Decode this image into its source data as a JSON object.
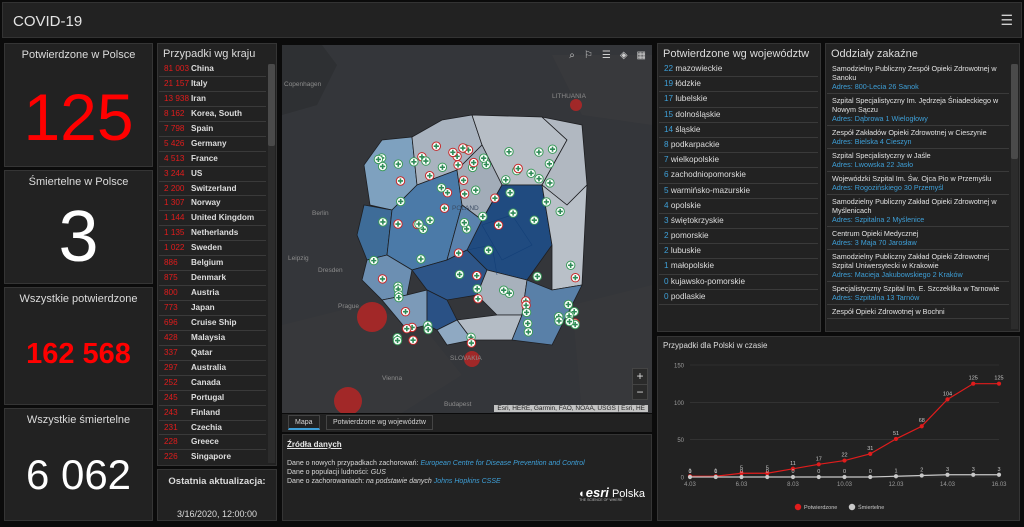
{
  "header": {
    "title": "COVID-19",
    "menu_icon": "hamburger-menu-icon"
  },
  "stats": {
    "confirmed_pl": {
      "label": "Potwierdzone w Polsce",
      "value": "125"
    },
    "deaths_pl": {
      "label": "Śmiertelne w Polsce",
      "value": "3"
    },
    "confirmed_all": {
      "label": "Wszystkie potwierdzone",
      "value": "162 568"
    },
    "deaths_all": {
      "label": "Wszystkie śmiertelne",
      "value": "6 062"
    }
  },
  "colors": {
    "red": "#ff0000",
    "blue": "#3e9fd7",
    "panel": "#222222",
    "chart_red": "#e01c1c",
    "chart_gray": "#c8c8c8"
  },
  "countries": {
    "title": "Przypadki wg kraju",
    "items": [
      {
        "num": "81 003",
        "name": "China"
      },
      {
        "num": "21 157",
        "name": "Italy"
      },
      {
        "num": "13 938",
        "name": "Iran"
      },
      {
        "num": "8 162",
        "name": "Korea, South"
      },
      {
        "num": "7 798",
        "name": "Spain"
      },
      {
        "num": "5 426",
        "name": "Germany"
      },
      {
        "num": "4 513",
        "name": "France"
      },
      {
        "num": "3 244",
        "name": "US"
      },
      {
        "num": "2 200",
        "name": "Switzerland"
      },
      {
        "num": "1 307",
        "name": "Norway"
      },
      {
        "num": "1 144",
        "name": "United Kingdom"
      },
      {
        "num": "1 135",
        "name": "Netherlands"
      },
      {
        "num": "1 022",
        "name": "Sweden"
      },
      {
        "num": "886",
        "name": "Belgium"
      },
      {
        "num": "875",
        "name": "Denmark"
      },
      {
        "num": "800",
        "name": "Austria"
      },
      {
        "num": "773",
        "name": "Japan"
      },
      {
        "num": "696",
        "name": "Cruise Ship"
      },
      {
        "num": "428",
        "name": "Malaysia"
      },
      {
        "num": "337",
        "name": "Qatar"
      },
      {
        "num": "297",
        "name": "Australia"
      },
      {
        "num": "252",
        "name": "Canada"
      },
      {
        "num": "245",
        "name": "Portugal"
      },
      {
        "num": "243",
        "name": "Finland"
      },
      {
        "num": "231",
        "name": "Czechia"
      },
      {
        "num": "228",
        "name": "Greece"
      },
      {
        "num": "226",
        "name": "Singapore"
      }
    ]
  },
  "last_update": {
    "label": "Ostatnia aktualizacja:",
    "value": "3/16/2020, 12:00:00"
  },
  "map": {
    "labels": {
      "copenhagen": "Copenhagen",
      "lithuania": "LITHUANIA",
      "berlin": "Berlin",
      "leipzig": "Leipzig",
      "dresden": "Dresden",
      "prague": "Prague",
      "slovakia": "SLOVAKIA",
      "vienna": "Vienna",
      "budapest": "Budapest",
      "poland": "POLAND"
    },
    "attribution": "Esri, HERE, Garmin, FAO, NOAA, USGS | Esri, HE",
    "zoom_in": "+",
    "zoom_out": "−"
  },
  "map_tabs": {
    "map": "Mapa",
    "voivodeship": "Potwierdzone wg województw"
  },
  "sources": {
    "heading": "Źródła danych",
    "line1_prefix": "Dane o nowych przypadkach zachorowań:",
    "line1_link": "European Centre for Disease Prevention and Control",
    "line2_prefix": "Dane o populacji ludności:",
    "line2_value": "GUS",
    "line3_prefix": "Dane o zachorowaniach:",
    "line3_mid": "na podstawie danych",
    "line3_link": "Johns Hopkins CSSE",
    "logo": "esri",
    "logo_suffix": "Polska",
    "logo_tagline": "THE SCIENCE OF WHERE"
  },
  "voivodeships": {
    "title": "Potwierdzone wg województw",
    "items": [
      {
        "num": "22",
        "name": "mazowieckie"
      },
      {
        "num": "19",
        "name": "łódzkie"
      },
      {
        "num": "17",
        "name": "lubelskie"
      },
      {
        "num": "15",
        "name": "dolnośląskie"
      },
      {
        "num": "14",
        "name": "śląskie"
      },
      {
        "num": "8",
        "name": "podkarpackie"
      },
      {
        "num": "7",
        "name": "wielkopolskie"
      },
      {
        "num": "6",
        "name": "zachodniopomorskie"
      },
      {
        "num": "5",
        "name": "warmińsko-mazurskie"
      },
      {
        "num": "4",
        "name": "opolskie"
      },
      {
        "num": "3",
        "name": "świętokrzyskie"
      },
      {
        "num": "2",
        "name": "pomorskie"
      },
      {
        "num": "2",
        "name": "lubuskie"
      },
      {
        "num": "1",
        "name": "małopolskie"
      },
      {
        "num": "0",
        "name": "kujawsko-pomorskie"
      },
      {
        "num": "0",
        "name": "podlaskie"
      }
    ]
  },
  "hospitals": {
    "title": "Oddziały zakaźne",
    "items": [
      {
        "name": "Samodzielny Publiczny Zespół Opieki Zdrowotnej w Sanoku",
        "addr": "Adres: 800-Lecia 26 Sanok"
      },
      {
        "name": "Szpital Specjalistyczny Im. Jędrzeja Śniadeckiego w Nowym Sączu",
        "addr": "Adres: Dąbrowa 1 Wielogłowy"
      },
      {
        "name": "Zespół Zakładów Opieki Zdrowotnej w Cieszynie",
        "addr": "Adres: Bielska 4 Cieszyn"
      },
      {
        "name": "Szpital Specjalistyczny w Jaśle",
        "addr": "Adres: Lwowska 22 Jasło"
      },
      {
        "name": "Wojewódzki Szpital Im. Św. Ojca Pio w Przemyślu",
        "addr": "Adres: Rogozińskiego 30 Przemyśl"
      },
      {
        "name": "Samodzielny Publiczny Zakład Opieki Zdrowotnej w Myślenicach",
        "addr": "Adres: Szpitalna 2 Myślenice"
      },
      {
        "name": "Centrum Opieki Medycznej",
        "addr": "Adres: 3 Maja 70 Jarosław"
      },
      {
        "name": "Samodzielny Publiczny Zakład Opieki Zdrowotnej Szpital Uniwersytecki w Krakowie",
        "addr": "Adres: Macieja Jakubowskiego 2 Kraków"
      },
      {
        "name": "Specjalistyczny Szpital Im. E. Szczeklika w Tarnowie",
        "addr": "Adres: Szpitalna 13 Tarnów"
      },
      {
        "name": "Zespół Opieki Zdrowotnej w Bochni",
        "addr": ""
      }
    ]
  },
  "chart_title": "Przypadki dla Polski w czasie",
  "chart_data": {
    "type": "line",
    "title": "Przypadki dla Polski w czasie",
    "x": [
      "4.03",
      "5.03",
      "6.03",
      "7.03",
      "8.03",
      "9.03",
      "10.03",
      "11.03",
      "12.03",
      "13.03",
      "14.03",
      "15.03",
      "16.03"
    ],
    "x_tick_labels": [
      "4.03",
      "6.03",
      "8.03",
      "10.03",
      "12.03",
      "14.03",
      "16.03"
    ],
    "ylim": [
      0,
      150
    ],
    "y_ticks": [
      0,
      50,
      100,
      150
    ],
    "grid": true,
    "legend": "bottom",
    "series": [
      {
        "name": "Potwierdzone",
        "color": "#e01c1c",
        "values": [
          1,
          1,
          5,
          5,
          11,
          17,
          22,
          31,
          51,
          68,
          104,
          125,
          125
        ]
      },
      {
        "name": "Śmiertelne",
        "color": "#c8c8c8",
        "values": [
          0,
          0,
          0,
          0,
          0,
          0,
          0,
          0,
          1,
          2,
          3,
          3,
          3
        ]
      }
    ]
  }
}
